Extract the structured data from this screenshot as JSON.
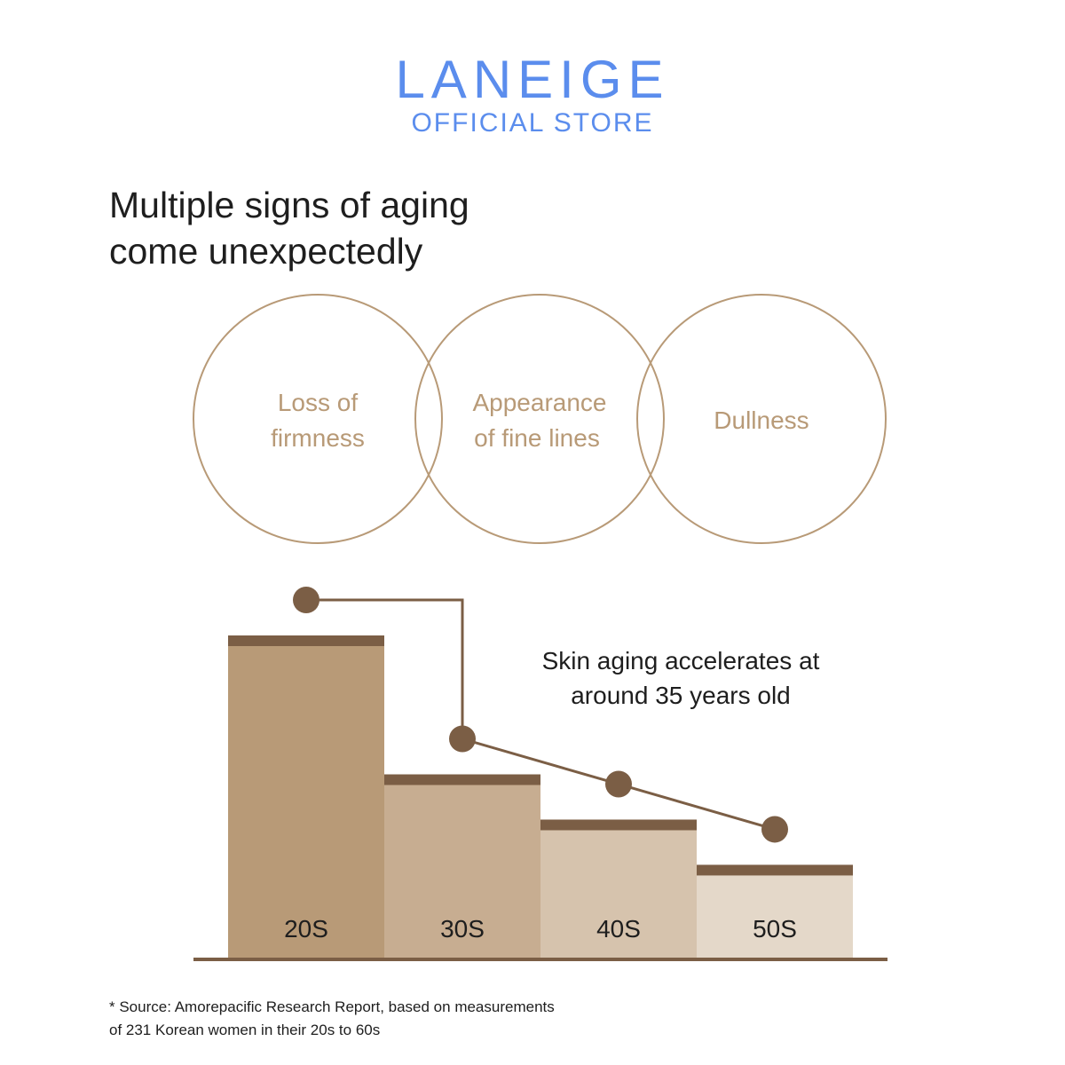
{
  "brand": {
    "name": "LANEIGE",
    "subtitle": "OFFICIAL STORE",
    "color": "#5b8ded"
  },
  "headline": {
    "line1": "Multiple signs of aging",
    "line2": "come unexpectedly"
  },
  "signs": [
    {
      "line1": "Loss of",
      "line2": "firmness"
    },
    {
      "line1": "Appearance",
      "line2": "of fine lines"
    },
    {
      "line1": "Dullness",
      "line2": ""
    }
  ],
  "chart_data": {
    "type": "bar",
    "title": "",
    "xlabel": "",
    "ylabel": "",
    "categories": [
      "20S",
      "30S",
      "40S",
      "50S"
    ],
    "values": [
      100,
      57,
      43,
      29
    ],
    "ylim": [
      0,
      100
    ],
    "line_markers": true,
    "annotation": {
      "line1": "Skin aging accelerates at",
      "line2": "around 35 years old"
    },
    "colors": {
      "bars": [
        "#b89a77",
        "#c7ad91",
        "#d6c3ad",
        "#e4d8c9"
      ],
      "bar_cap": "#7b5e45",
      "marker": "#7b5e45",
      "circle_stroke": "#b89a77",
      "circle_text": "#b89a77",
      "baseline": "#7b5e45"
    }
  },
  "footnote": {
    "line1": "* Source: Amorepacific Research Report, based on measurements",
    "line2": "of 231 Korean women in their 20s to 60s"
  }
}
